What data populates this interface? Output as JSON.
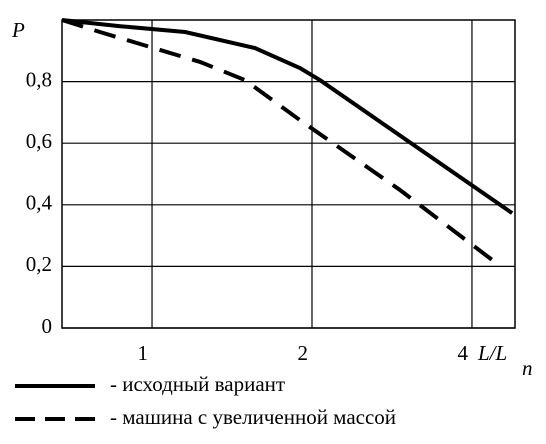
{
  "chart_data": {
    "type": "line",
    "ylabel": "P",
    "xlabel": "L/L",
    "xlabel_subscript": "n",
    "xscale": "log",
    "xlim": [
      0.677,
      4.82
    ],
    "ylim": [
      0,
      1
    ],
    "xticks": [
      1,
      2,
      4
    ],
    "yticks": [
      0,
      {
        "value": 0.2,
        "label": "0,2"
      },
      {
        "value": 0.4,
        "label": "0,4"
      },
      {
        "value": 0.6,
        "label": "0,6"
      },
      {
        "value": 0.8,
        "label": "0,8"
      }
    ],
    "grid": true,
    "series": [
      {
        "name": "- исходный вариант",
        "color": "#000000",
        "dash": "solid",
        "x": [
          0.677,
          0.871,
          1.154,
          1.562,
          1.898,
          2.07,
          4.76
        ],
        "values": [
          1.0,
          0.98,
          0.961,
          0.909,
          0.844,
          0.805,
          0.373
        ]
      },
      {
        "name": "- машина с увеличенной массой",
        "color": "#000000",
        "dash": "dashed",
        "x": [
          0.677,
          0.798,
          1.231,
          1.496,
          1.898,
          2.928,
          4.42
        ],
        "values": [
          1.0,
          0.961,
          0.864,
          0.805,
          0.675,
          0.448,
          0.214
        ]
      }
    ]
  }
}
